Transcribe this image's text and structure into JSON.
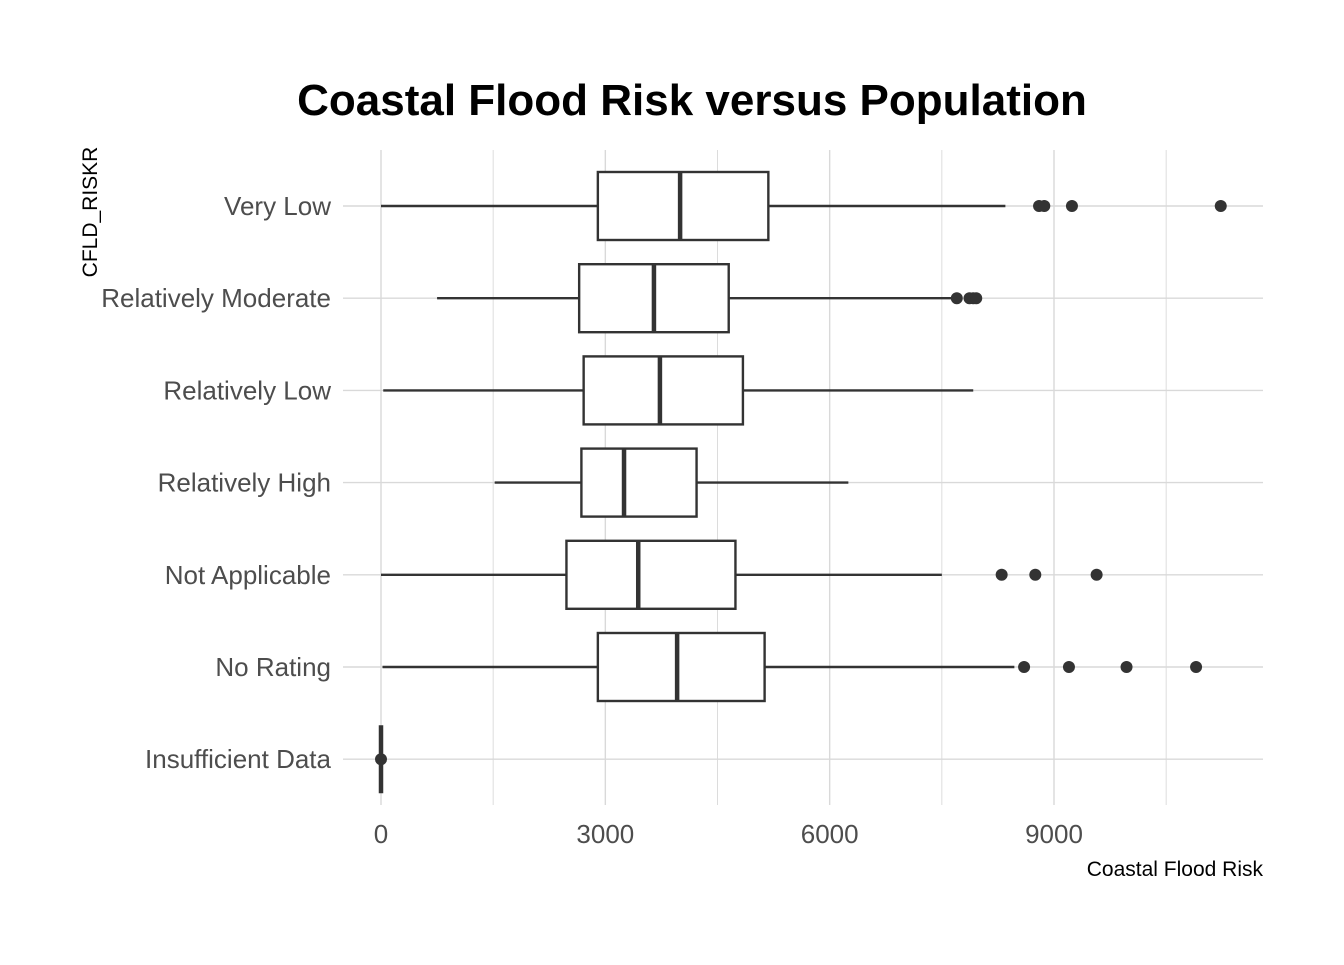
{
  "chart_data": {
    "type": "boxplot",
    "title": "Coastal Flood Risk versus Population",
    "xlabel": "Coastal Flood Risk",
    "ylabel": "CFLD_RISKR",
    "orientation": "horizontal",
    "xlim": [
      0,
      11600
    ],
    "x_ticks": [
      0,
      3000,
      6000,
      9000
    ],
    "x_tick_labels": [
      "0",
      "3000",
      "6000",
      "9000"
    ],
    "grid": true,
    "colors": {
      "box_stroke": "#333333",
      "grid": "#d9d9d9",
      "point": "#333333"
    },
    "categories": [
      "Very Low",
      "Relatively Moderate",
      "Relatively Low",
      "Relatively High",
      "Not Applicable",
      "No Rating",
      "Insufficient Data"
    ],
    "boxes": [
      {
        "category": "Very Low",
        "min": 0,
        "q1": 2900,
        "median": 4000,
        "q3": 5180,
        "max": 8350,
        "outliers": [
          8800,
          8870,
          9240,
          11230
        ]
      },
      {
        "category": "Relatively Moderate",
        "min": 750,
        "q1": 2650,
        "median": 3650,
        "q3": 4650,
        "max": 7650,
        "outliers": [
          7700,
          7870,
          7920,
          7960
        ]
      },
      {
        "category": "Relatively Low",
        "min": 30,
        "q1": 2710,
        "median": 3730,
        "q3": 4840,
        "max": 7920,
        "outliers": []
      },
      {
        "category": "Relatively High",
        "min": 1520,
        "q1": 2680,
        "median": 3250,
        "q3": 4220,
        "max": 6250,
        "outliers": []
      },
      {
        "category": "Not Applicable",
        "min": 0,
        "q1": 2480,
        "median": 3440,
        "q3": 4740,
        "max": 7500,
        "outliers": [
          8300,
          8750,
          9570
        ]
      },
      {
        "category": "No Rating",
        "min": 20,
        "q1": 2900,
        "median": 3960,
        "q3": 5130,
        "max": 8470,
        "outliers": [
          8600,
          9200,
          9970,
          10900
        ]
      },
      {
        "category": "Insufficient Data",
        "min": 0,
        "q1": 0,
        "median": 0,
        "q3": 0,
        "max": 0,
        "outliers": [
          0
        ]
      }
    ]
  }
}
